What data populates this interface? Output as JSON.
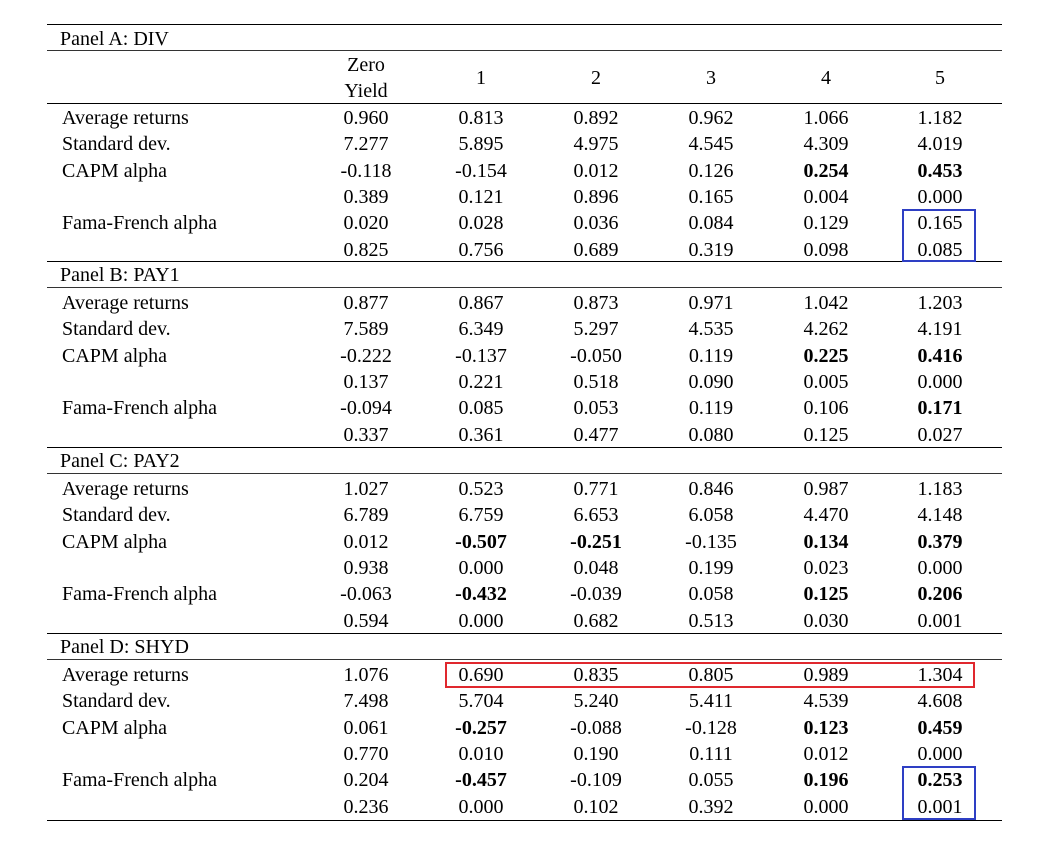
{
  "columns": [
    "Zero Yield",
    "1",
    "2",
    "3",
    "4",
    "5"
  ],
  "colors": {
    "highlight_red": "#e0282e",
    "highlight_blue": "#2e3fc4"
  },
  "panels": [
    {
      "title": "Panel A: DIV",
      "rows": [
        {
          "label": "Average returns",
          "values": [
            "0.960",
            "0.813",
            "0.892",
            "0.962",
            "1.066",
            "1.182"
          ],
          "bold": [
            false,
            false,
            false,
            false,
            false,
            false
          ]
        },
        {
          "label": "Standard dev.",
          "values": [
            "7.277",
            "5.895",
            "4.975",
            "4.545",
            "4.309",
            "4.019"
          ],
          "bold": [
            false,
            false,
            false,
            false,
            false,
            false
          ]
        },
        {
          "label": "CAPM alpha",
          "values": [
            "-0.118",
            "-0.154",
            "0.012",
            "0.126",
            "0.254",
            "0.453"
          ],
          "bold": [
            false,
            false,
            false,
            false,
            true,
            true
          ]
        },
        {
          "label": "",
          "values": [
            "0.389",
            "0.121",
            "0.896",
            "0.165",
            "0.004",
            "0.000"
          ],
          "bold": [
            false,
            false,
            false,
            false,
            false,
            false
          ]
        },
        {
          "label": "Fama-French alpha",
          "values": [
            "0.020",
            "0.028",
            "0.036",
            "0.084",
            "0.129",
            "0.165"
          ],
          "bold": [
            false,
            false,
            false,
            false,
            false,
            false
          ]
        },
        {
          "label": "",
          "values": [
            "0.825",
            "0.756",
            "0.689",
            "0.319",
            "0.098",
            "0.085"
          ],
          "bold": [
            false,
            false,
            false,
            false,
            false,
            false
          ]
        }
      ]
    },
    {
      "title": "Panel B: PAY1",
      "rows": [
        {
          "label": "Average returns",
          "values": [
            "0.877",
            "0.867",
            "0.873",
            "0.971",
            "1.042",
            "1.203"
          ],
          "bold": [
            false,
            false,
            false,
            false,
            false,
            false
          ]
        },
        {
          "label": "Standard dev.",
          "values": [
            "7.589",
            "6.349",
            "5.297",
            "4.535",
            "4.262",
            "4.191"
          ],
          "bold": [
            false,
            false,
            false,
            false,
            false,
            false
          ]
        },
        {
          "label": "CAPM alpha",
          "values": [
            "-0.222",
            "-0.137",
            "-0.050",
            "0.119",
            "0.225",
            "0.416"
          ],
          "bold": [
            false,
            false,
            false,
            false,
            true,
            true
          ]
        },
        {
          "label": "",
          "values": [
            "0.137",
            "0.221",
            "0.518",
            "0.090",
            "0.005",
            "0.000"
          ],
          "bold": [
            false,
            false,
            false,
            false,
            false,
            false
          ]
        },
        {
          "label": "Fama-French alpha",
          "values": [
            "-0.094",
            "0.085",
            "0.053",
            "0.119",
            "0.106",
            "0.171"
          ],
          "bold": [
            false,
            false,
            false,
            false,
            false,
            true
          ]
        },
        {
          "label": "",
          "values": [
            "0.337",
            "0.361",
            "0.477",
            "0.080",
            "0.125",
            "0.027"
          ],
          "bold": [
            false,
            false,
            false,
            false,
            false,
            false
          ]
        }
      ]
    },
    {
      "title": "Panel C: PAY2",
      "rows": [
        {
          "label": "Average returns",
          "values": [
            "1.027",
            "0.523",
            "0.771",
            "0.846",
            "0.987",
            "1.183"
          ],
          "bold": [
            false,
            false,
            false,
            false,
            false,
            false
          ]
        },
        {
          "label": "Standard dev.",
          "values": [
            "6.789",
            "6.759",
            "6.653",
            "6.058",
            "4.470",
            "4.148"
          ],
          "bold": [
            false,
            false,
            false,
            false,
            false,
            false
          ]
        },
        {
          "label": "CAPM alpha",
          "values": [
            "0.012",
            "-0.507",
            "-0.251",
            "-0.135",
            "0.134",
            "0.379"
          ],
          "bold": [
            false,
            true,
            true,
            false,
            true,
            true
          ]
        },
        {
          "label": "",
          "values": [
            "0.938",
            "0.000",
            "0.048",
            "0.199",
            "0.023",
            "0.000"
          ],
          "bold": [
            false,
            false,
            false,
            false,
            false,
            false
          ]
        },
        {
          "label": "Fama-French alpha",
          "values": [
            "-0.063",
            "-0.432",
            "-0.039",
            "0.058",
            "0.125",
            "0.206"
          ],
          "bold": [
            false,
            true,
            false,
            false,
            true,
            true
          ]
        },
        {
          "label": "",
          "values": [
            "0.594",
            "0.000",
            "0.682",
            "0.513",
            "0.030",
            "0.001"
          ],
          "bold": [
            false,
            false,
            false,
            false,
            false,
            false
          ]
        }
      ]
    },
    {
      "title": "Panel D: SHYD",
      "rows": [
        {
          "label": "Average returns",
          "values": [
            "1.076",
            "0.690",
            "0.835",
            "0.805",
            "0.989",
            "1.304"
          ],
          "bold": [
            false,
            false,
            false,
            false,
            false,
            false
          ]
        },
        {
          "label": "Standard dev.",
          "values": [
            "7.498",
            "5.704",
            "5.240",
            "5.411",
            "4.539",
            "4.608"
          ],
          "bold": [
            false,
            false,
            false,
            false,
            false,
            false
          ]
        },
        {
          "label": "CAPM alpha",
          "values": [
            "0.061",
            "-0.257",
            "-0.088",
            "-0.128",
            "0.123",
            "0.459"
          ],
          "bold": [
            false,
            true,
            false,
            false,
            true,
            true
          ]
        },
        {
          "label": "",
          "values": [
            "0.770",
            "0.010",
            "0.190",
            "0.111",
            "0.012",
            "0.000"
          ],
          "bold": [
            false,
            false,
            false,
            false,
            false,
            false
          ]
        },
        {
          "label": "Fama-French alpha",
          "values": [
            "0.204",
            "-0.457",
            "-0.109",
            "0.055",
            "0.196",
            "0.253"
          ],
          "bold": [
            false,
            true,
            false,
            false,
            true,
            true
          ]
        },
        {
          "label": "",
          "values": [
            "0.236",
            "0.000",
            "0.102",
            "0.392",
            "0.000",
            "0.001"
          ],
          "bold": [
            false,
            false,
            false,
            false,
            false,
            false
          ]
        }
      ]
    }
  ]
}
